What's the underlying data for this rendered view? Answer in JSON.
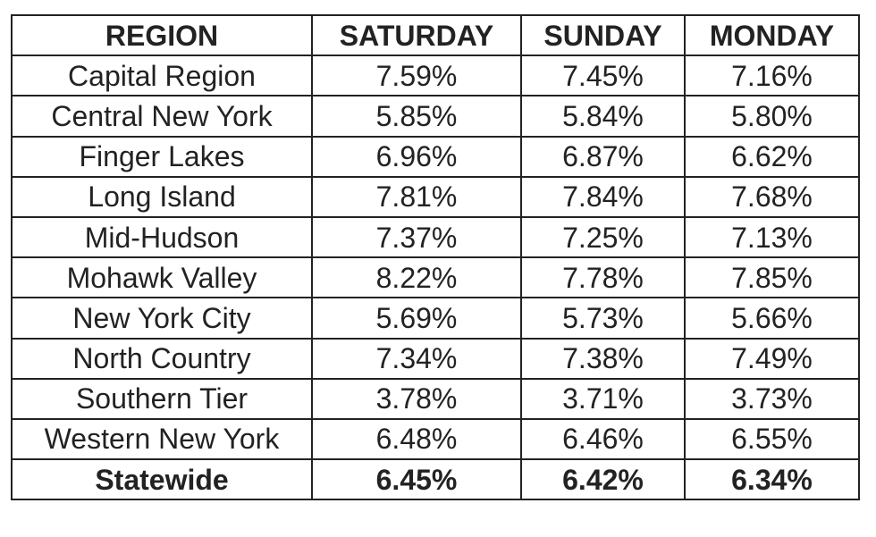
{
  "table": {
    "header": [
      "REGION",
      "SATURDAY",
      "SUNDAY",
      "MONDAY"
    ],
    "rows": [
      [
        "Capital Region",
        "7.59%",
        "7.45%",
        "7.16%"
      ],
      [
        "Central New York",
        "5.85%",
        "5.84%",
        "5.80%"
      ],
      [
        "Finger Lakes",
        "6.96%",
        "6.87%",
        "6.62%"
      ],
      [
        "Long Island",
        "7.81%",
        "7.84%",
        "7.68%"
      ],
      [
        "Mid-Hudson",
        "7.37%",
        "7.25%",
        "7.13%"
      ],
      [
        "Mohawk Valley",
        "8.22%",
        "7.78%",
        "7.85%"
      ],
      [
        "New York City",
        "5.69%",
        "5.73%",
        "5.66%"
      ],
      [
        "North Country",
        "7.34%",
        "7.38%",
        "7.49%"
      ],
      [
        "Southern Tier",
        "3.78%",
        "3.71%",
        "3.73%"
      ],
      [
        "Western New York",
        "6.48%",
        "6.46%",
        "6.55%"
      ],
      [
        "Statewide",
        "6.45%",
        "6.42%",
        "6.34%"
      ]
    ]
  }
}
